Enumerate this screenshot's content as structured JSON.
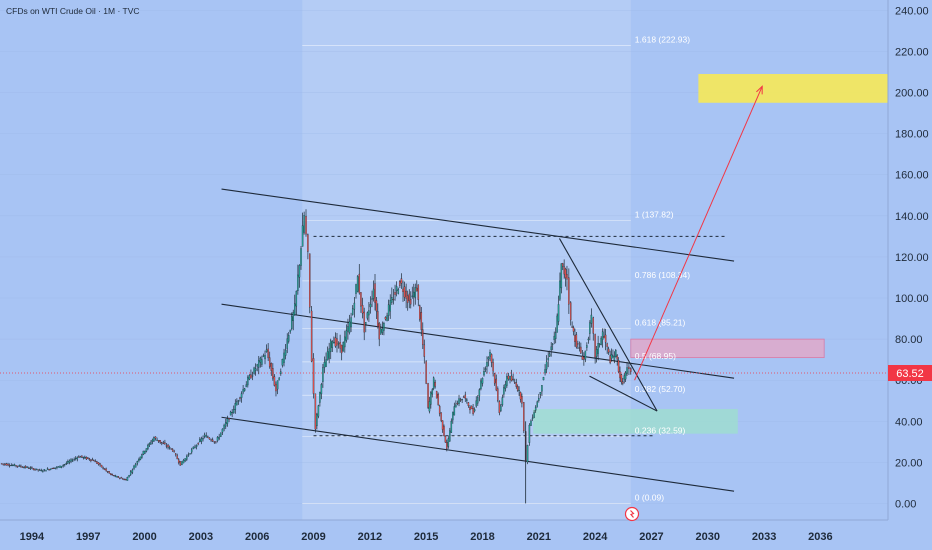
{
  "chart_data": {
    "type": "candlestick",
    "title": "CFDs on WTI Crude Oil · 1M · TVC",
    "current_price": "63.52",
    "x_ticks": [
      "1994",
      "1997",
      "2000",
      "2003",
      "2006",
      "2009",
      "2012",
      "2015",
      "2018",
      "2021",
      "2024",
      "2027",
      "2030",
      "2033",
      "2036"
    ],
    "y_ticks": [
      "0.00",
      "20.00",
      "40.00",
      "60.00",
      "80.00",
      "100.00",
      "120.00",
      "140.00",
      "160.00",
      "180.00",
      "200.00",
      "220.00",
      "240.00"
    ],
    "y_range": [
      -8,
      245
    ],
    "x_range": [
      1992.3,
      2039.6
    ],
    "price_path": [
      [
        1992.3,
        19.5
      ],
      [
        1993.5,
        18
      ],
      [
        1994.5,
        16
      ],
      [
        1995.5,
        18
      ],
      [
        1996.5,
        23
      ],
      [
        1997.3,
        21
      ],
      [
        1998.2,
        14
      ],
      [
        1999.0,
        11.5
      ],
      [
        1999.7,
        22
      ],
      [
        2000.5,
        32
      ],
      [
        2001.5,
        26
      ],
      [
        2001.9,
        19
      ],
      [
        2002.6,
        27
      ],
      [
        2003.2,
        33
      ],
      [
        2003.8,
        30
      ],
      [
        2004.5,
        42
      ],
      [
        2005.5,
        60
      ],
      [
        2006.5,
        74
      ],
      [
        2007.0,
        55
      ],
      [
        2007.6,
        80
      ],
      [
        2008.0,
        95
      ],
      [
        2008.5,
        140
      ],
      [
        2008.7,
        120
      ],
      [
        2008.9,
        70
      ],
      [
        2009.1,
        37
      ],
      [
        2009.5,
        65
      ],
      [
        2010.0,
        80
      ],
      [
        2010.5,
        75
      ],
      [
        2011.0,
        90
      ],
      [
        2011.35,
        110
      ],
      [
        2011.7,
        85
      ],
      [
        2012.2,
        105
      ],
      [
        2012.5,
        82
      ],
      [
        2013.0,
        95
      ],
      [
        2013.6,
        108
      ],
      [
        2014.1,
        98
      ],
      [
        2014.5,
        105
      ],
      [
        2014.9,
        70
      ],
      [
        2015.1,
        46
      ],
      [
        2015.4,
        60
      ],
      [
        2015.8,
        40
      ],
      [
        2016.1,
        27
      ],
      [
        2016.5,
        48
      ],
      [
        2017.0,
        52
      ],
      [
        2017.5,
        44
      ],
      [
        2018.0,
        62
      ],
      [
        2018.4,
        74
      ],
      [
        2018.9,
        45
      ],
      [
        2019.3,
        62
      ],
      [
        2019.8,
        58
      ],
      [
        2020.1,
        50
      ],
      [
        2020.3,
        20
      ],
      [
        2020.5,
        38
      ],
      [
        2021.0,
        52
      ],
      [
        2021.5,
        72
      ],
      [
        2021.9,
        82
      ],
      [
        2022.2,
        115
      ],
      [
        2022.5,
        110
      ],
      [
        2022.7,
        88
      ],
      [
        2023.0,
        78
      ],
      [
        2023.4,
        70
      ],
      [
        2023.8,
        90
      ],
      [
        2024.0,
        72
      ],
      [
        2024.4,
        83
      ],
      [
        2024.8,
        70
      ],
      [
        2025.1,
        73
      ],
      [
        2025.4,
        58
      ],
      [
        2025.7,
        65
      ],
      [
        2025.9,
        63.52
      ]
    ],
    "fib_levels": [
      {
        "label": "1.618 (222.93)",
        "value": 222.93
      },
      {
        "label": "1 (137.82)",
        "value": 137.82
      },
      {
        "label": "0.786 (108.34)",
        "value": 108.34
      },
      {
        "label": "0.618 (85.21)",
        "value": 85.21
      },
      {
        "label": "0.5 (68.95)",
        "value": 68.95
      },
      {
        "label": "0.382 (52.70)",
        "value": 52.7
      },
      {
        "label": "0.236 (32.59)",
        "value": 32.59
      },
      {
        "label": "0 (0.09)",
        "value": 0.09
      }
    ],
    "fib_x_range": [
      2008.4,
      2025.9
    ],
    "highlight_x_range": [
      2008.4,
      2025.9
    ],
    "zones": [
      {
        "name": "target-zone",
        "x": [
          2029.5,
          2039.6
        ],
        "y": [
          195,
          209
        ],
        "color": "#f2e75f"
      },
      {
        "name": "resistance-zone",
        "x": [
          2025.9,
          2036.2
        ],
        "y": [
          71,
          80
        ],
        "color": "#e8a6c4"
      },
      {
        "name": "support-zone",
        "x": [
          2020.7,
          2031.6
        ],
        "y": [
          34,
          46
        ],
        "color": "#9ee0cc"
      }
    ],
    "channel_lines": [
      {
        "name": "channel-top",
        "from": [
          2004.1,
          153
        ],
        "to": [
          2031.4,
          118
        ]
      },
      {
        "name": "channel-middle",
        "from": [
          2004.1,
          97
        ],
        "to": [
          2031.4,
          61
        ]
      },
      {
        "name": "channel-bottom",
        "from": [
          2004.1,
          42
        ],
        "to": [
          2031.4,
          6
        ]
      },
      {
        "name": "wedge-upper",
        "from": [
          2022.1,
          129
        ],
        "to": [
          2027.3,
          45
        ]
      },
      {
        "name": "wedge-lower",
        "from": [
          2023.7,
          62
        ],
        "to": [
          2027.3,
          45
        ]
      }
    ],
    "dashed_levels": [
      {
        "name": "resistance-dashed",
        "value": 130,
        "x": [
          2009.0,
          2030.9
        ]
      },
      {
        "name": "support-dashed",
        "value": 33,
        "x": [
          2009.0,
          2027.2
        ]
      }
    ],
    "projection_arrow": {
      "from": [
        2026.1,
        60
      ],
      "to": [
        2032.9,
        203
      ]
    },
    "colors": {
      "background": "#a8c4f4",
      "up": "#26a69a",
      "down": "#ef5350",
      "current_price": "#f23645",
      "text": "#1e2a3a"
    }
  }
}
